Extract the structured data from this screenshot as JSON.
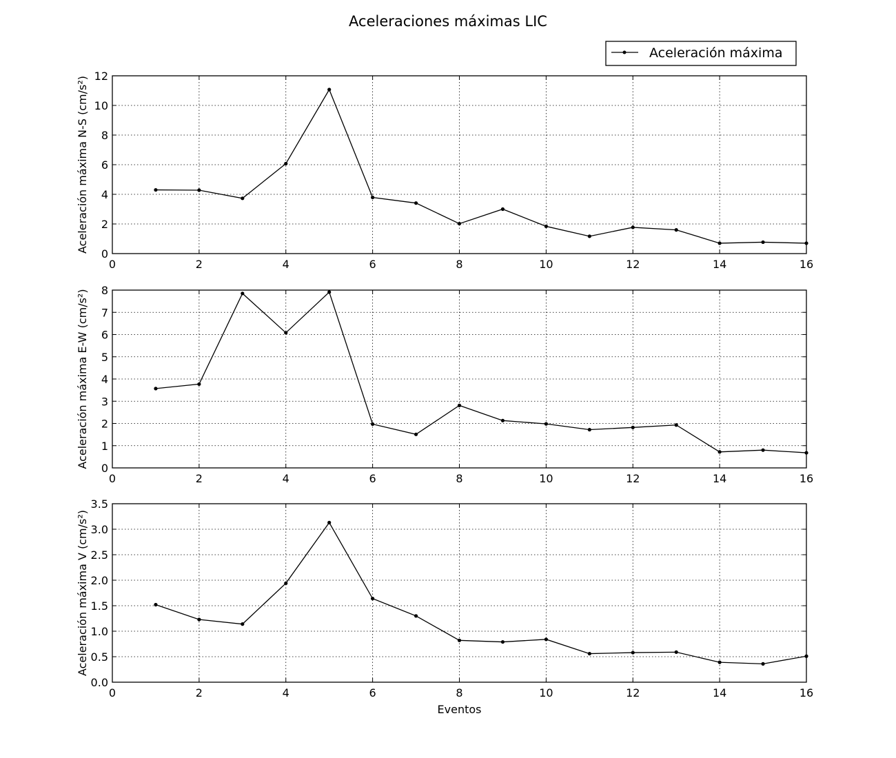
{
  "figure": {
    "title": "Aceleraciones máximas LIC",
    "legend": {
      "label": "Aceleración máxima",
      "placement": "top-right"
    },
    "line_color": "#000000",
    "grid_color": "#000000"
  },
  "chart_data": [
    {
      "type": "line",
      "xlabel": "",
      "ylabel": "Aceleración máxima N-S (cm/s²)",
      "xlim": [
        0,
        16
      ],
      "ylim": [
        0,
        12
      ],
      "grid": true,
      "xticks": [
        0,
        2,
        4,
        6,
        8,
        10,
        12,
        14,
        16
      ],
      "xtick_labels": [
        "0",
        "2",
        "4",
        "6",
        "8",
        "10",
        "12",
        "14",
        "16"
      ],
      "yticks": [
        0,
        2,
        4,
        6,
        8,
        10,
        12
      ],
      "ytick_labels": [
        "0",
        "2",
        "4",
        "6",
        "8",
        "10",
        "12"
      ],
      "series": [
        {
          "name": "Aceleración máxima",
          "x": [
            1,
            2,
            3,
            4,
            5,
            6,
            7,
            8,
            9,
            10,
            11,
            12,
            13,
            14,
            15,
            16
          ],
          "y": [
            4.3,
            4.28,
            3.73,
            6.07,
            11.07,
            3.79,
            3.41,
            2.02,
            3.0,
            1.84,
            1.17,
            1.77,
            1.6,
            0.7,
            0.77,
            0.7
          ]
        }
      ]
    },
    {
      "type": "line",
      "xlabel": "",
      "ylabel": "Aceleración máxima E-W (cm/s²)",
      "xlim": [
        0,
        16
      ],
      "ylim": [
        0,
        8
      ],
      "grid": true,
      "xticks": [
        0,
        2,
        4,
        6,
        8,
        10,
        12,
        14,
        16
      ],
      "xtick_labels": [
        "0",
        "2",
        "4",
        "6",
        "8",
        "10",
        "12",
        "14",
        "16"
      ],
      "yticks": [
        0,
        1,
        2,
        3,
        4,
        5,
        6,
        7,
        8
      ],
      "ytick_labels": [
        "0",
        "1",
        "2",
        "3",
        "4",
        "5",
        "6",
        "7",
        "8"
      ],
      "series": [
        {
          "name": "Aceleración máxima",
          "x": [
            1,
            2,
            3,
            4,
            5,
            6,
            7,
            8,
            9,
            10,
            11,
            12,
            13,
            14,
            15,
            16
          ],
          "y": [
            3.57,
            3.77,
            7.85,
            6.08,
            7.91,
            1.97,
            1.51,
            2.81,
            2.13,
            1.98,
            1.72,
            1.82,
            1.93,
            0.72,
            0.8,
            0.68
          ]
        }
      ]
    },
    {
      "type": "line",
      "xlabel": "Eventos",
      "ylabel": "Aceleración máxima V (cm/s²)",
      "xlim": [
        0,
        16
      ],
      "ylim": [
        0,
        3.5
      ],
      "grid": true,
      "xticks": [
        0,
        2,
        4,
        6,
        8,
        10,
        12,
        14,
        16
      ],
      "xtick_labels": [
        "0",
        "2",
        "4",
        "6",
        "8",
        "10",
        "12",
        "14",
        "16"
      ],
      "yticks": [
        0,
        0.5,
        1,
        1.5,
        2,
        2.5,
        3,
        3.5
      ],
      "ytick_labels": [
        "0.0",
        "0.5",
        "1.0",
        "1.5",
        "2.0",
        "2.5",
        "3.0",
        "3.5"
      ],
      "series": [
        {
          "name": "Aceleración máxima",
          "x": [
            1,
            2,
            3,
            4,
            5,
            6,
            7,
            8,
            9,
            10,
            11,
            12,
            13,
            14,
            15,
            16
          ],
          "y": [
            1.52,
            1.23,
            1.14,
            1.94,
            3.13,
            1.64,
            1.3,
            0.82,
            0.79,
            0.84,
            0.56,
            0.58,
            0.59,
            0.39,
            0.36,
            0.51
          ]
        }
      ]
    }
  ]
}
